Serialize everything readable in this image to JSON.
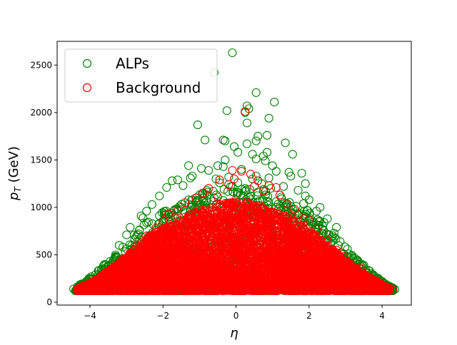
{
  "chart_data": {
    "type": "scatter",
    "title": "",
    "xlabel": "η",
    "ylabel_main": "p",
    "ylabel_sub": "T",
    "ylabel_unit": " (GeV)",
    "xlim": [
      -4.9,
      4.8
    ],
    "ylim": [
      -30,
      2750
    ],
    "xticks": [
      -4,
      -2,
      0,
      2,
      4
    ],
    "yticks": [
      0,
      500,
      1000,
      1500,
      2000,
      2500
    ],
    "xtick_labels": [
      "−4",
      "−2",
      "0",
      "2",
      "4"
    ],
    "ytick_labels": [
      "0",
      "500",
      "1000",
      "1500",
      "2000",
      "2500"
    ],
    "grid": false,
    "legend_position": "top-left",
    "marker": "open-circle",
    "series": [
      {
        "name": "ALPs",
        "color": "#008000",
        "points": [
          [
            -0.1,
            2630
          ],
          [
            -0.6,
            2420
          ],
          [
            0.55,
            2210
          ],
          [
            1.05,
            2110
          ],
          [
            0.3,
            2070
          ],
          [
            0.35,
            2040
          ],
          [
            -0.25,
            2020
          ],
          [
            0.25,
            2000
          ],
          [
            0.9,
            1940
          ],
          [
            0.3,
            1890
          ],
          [
            -1.05,
            1870
          ],
          [
            0.6,
            1750
          ],
          [
            0.85,
            1760
          ],
          [
            0.55,
            1700
          ],
          [
            -0.35,
            1710
          ],
          [
            -0.3,
            1700
          ],
          [
            -0.85,
            1710
          ],
          [
            0.3,
            1670
          ],
          [
            1.35,
            1680
          ],
          [
            -0.05,
            1640
          ],
          [
            0.05,
            1580
          ],
          [
            0.85,
            1580
          ],
          [
            0.45,
            1560
          ],
          [
            0.75,
            1540
          ],
          [
            0.55,
            1510
          ],
          [
            1.55,
            1560
          ],
          [
            -0.3,
            1500
          ],
          [
            0.8,
            1490
          ],
          [
            1.0,
            1440
          ],
          [
            -0.5,
            1440
          ],
          [
            -0.35,
            1430
          ],
          [
            -1.3,
            1440
          ],
          [
            -0.95,
            1410
          ],
          [
            -0.75,
            1390
          ],
          [
            0.15,
            1400
          ],
          [
            1.1,
            1380
          ],
          [
            1.45,
            1370
          ],
          [
            1.8,
            1360
          ],
          [
            -1.2,
            1330
          ],
          [
            -1.25,
            1310
          ],
          [
            0.55,
            1330
          ],
          [
            0.9,
            1310
          ],
          [
            1.5,
            1330
          ],
          [
            -1.6,
            1290
          ],
          [
            -1.75,
            1280
          ],
          [
            -0.55,
            1300
          ],
          [
            1.9,
            1250
          ],
          [
            0.7,
            1250
          ],
          [
            -1.45,
            1230
          ],
          [
            -0.1,
            1220
          ],
          [
            0.25,
            1200
          ],
          [
            1.3,
            1220
          ],
          [
            1.7,
            1180
          ],
          [
            -1.9,
            1210
          ],
          [
            -2.1,
            1120
          ],
          [
            -1.0,
            1130
          ],
          [
            1.9,
            1120
          ],
          [
            2.0,
            1080
          ],
          [
            -2.3,
            1030
          ],
          [
            1.85,
            1040
          ],
          [
            2.2,
            960
          ],
          [
            -2.45,
            960
          ],
          [
            -2.6,
            910
          ],
          [
            2.5,
            880
          ],
          [
            -2.55,
            890
          ],
          [
            2.3,
            1000
          ],
          [
            -2.9,
            790
          ],
          [
            2.75,
            790
          ],
          [
            -2.65,
            760
          ],
          [
            -3.0,
            710
          ],
          [
            2.65,
            700
          ],
          [
            2.85,
            640
          ],
          [
            -3.2,
            600
          ],
          [
            -3.1,
            580
          ],
          [
            3.05,
            560
          ],
          [
            -2.8,
            540
          ],
          [
            2.9,
            520
          ],
          [
            -3.3,
            500
          ],
          [
            3.05,
            480
          ],
          [
            3.2,
            460
          ],
          [
            -3.45,
            430
          ],
          [
            -3.6,
            400
          ],
          [
            3.5,
            390
          ],
          [
            3.1,
            420
          ],
          [
            -3.5,
            380
          ],
          [
            3.55,
            340
          ],
          [
            -3.7,
            330
          ],
          [
            3.7,
            300
          ],
          [
            -3.85,
            290
          ],
          [
            3.8,
            270
          ],
          [
            -4.0,
            250
          ],
          [
            3.9,
            240
          ],
          [
            -4.1,
            220
          ],
          [
            4.0,
            210
          ],
          [
            -4.2,
            190
          ],
          [
            4.1,
            180
          ],
          [
            -4.3,
            170
          ],
          [
            4.2,
            160
          ],
          [
            -4.45,
            140
          ],
          [
            4.35,
            135
          ],
          [
            -4.35,
            150
          ],
          [
            4.3,
            150
          ],
          [
            -1.5,
            1000
          ],
          [
            -1.1,
            1050
          ],
          [
            -0.6,
            1100
          ],
          [
            0.0,
            1080
          ],
          [
            0.4,
            1120
          ],
          [
            1.1,
            1060
          ],
          [
            1.5,
            1010
          ],
          [
            -2.0,
            850
          ],
          [
            2.1,
            820
          ],
          [
            -1.8,
            900
          ],
          [
            1.7,
            920
          ],
          [
            -0.8,
            1180
          ],
          [
            0.6,
            1160
          ],
          [
            0.05,
            1260
          ],
          [
            -0.2,
            1320
          ],
          [
            0.45,
            1300
          ],
          [
            -2.4,
            680
          ],
          [
            2.45,
            660
          ],
          [
            -2.2,
            760
          ],
          [
            2.2,
            740
          ],
          [
            -3.7,
            230
          ],
          [
            3.6,
            230
          ],
          [
            -1.3,
            1080
          ],
          [
            1.25,
            1090
          ],
          [
            -0.45,
            1260
          ],
          [
            0.95,
            1200
          ],
          [
            -4.0,
            180
          ],
          [
            3.95,
            170
          ]
        ]
      },
      {
        "name": "Background",
        "color": "#ff0000",
        "points": [
          [
            0.25,
            2010
          ],
          [
            -0.1,
            1390
          ],
          [
            0.15,
            1380
          ],
          [
            0.4,
            1350
          ],
          [
            -0.45,
            1290
          ],
          [
            0.9,
            1230
          ],
          [
            1.1,
            1210
          ],
          [
            -0.2,
            1240
          ],
          [
            -0.75,
            1200
          ],
          [
            0.5,
            1220
          ],
          [
            1.2,
            1130
          ],
          [
            -1.1,
            1100
          ],
          [
            -0.5,
            1110
          ],
          [
            0.3,
            1060
          ],
          [
            -1.4,
            1050
          ],
          [
            1.4,
            1040
          ],
          [
            1.6,
            980
          ],
          [
            -1.6,
            960
          ],
          [
            1.7,
            920
          ],
          [
            -1.85,
            930
          ],
          [
            -2.0,
            860
          ],
          [
            2.0,
            870
          ],
          [
            1.85,
            880
          ],
          [
            -2.2,
            780
          ],
          [
            2.2,
            770
          ],
          [
            -2.45,
            700
          ],
          [
            2.5,
            650
          ],
          [
            -2.7,
            600
          ],
          [
            2.75,
            550
          ],
          [
            -2.9,
            520
          ],
          [
            2.95,
            480
          ],
          [
            -3.1,
            420
          ],
          [
            3.1,
            400
          ],
          [
            3.4,
            360
          ],
          [
            -3.35,
            350
          ],
          [
            3.3,
            330
          ],
          [
            -3.6,
            300
          ],
          [
            3.6,
            270
          ],
          [
            -3.8,
            240
          ],
          [
            3.85,
            220
          ],
          [
            -4.0,
            200
          ],
          [
            4.0,
            180
          ],
          [
            -4.2,
            170
          ],
          [
            4.2,
            150
          ],
          [
            -4.35,
            140
          ],
          [
            4.3,
            130
          ],
          [
            -0.9,
            1150
          ],
          [
            0.75,
            1170
          ],
          [
            -0.05,
            1300
          ],
          [
            0.6,
            1280
          ]
        ]
      }
    ],
    "dense_regions": [
      {
        "series": "ALPs",
        "color": "#008000",
        "count": 1800,
        "seed": 11,
        "eta_range": [
          -4.4,
          4.3
        ],
        "pt_min": 120,
        "envelope": [
          [
            -4.4,
            150
          ],
          [
            -4.0,
            260
          ],
          [
            -3.5,
            430
          ],
          [
            -3.0,
            620
          ],
          [
            -2.5,
            860
          ],
          [
            -2.0,
            960
          ],
          [
            -1.5,
            1040
          ],
          [
            -1.0,
            1140
          ],
          [
            -0.5,
            1200
          ],
          [
            0.0,
            1230
          ],
          [
            0.5,
            1220
          ],
          [
            1.0,
            1160
          ],
          [
            1.5,
            1060
          ],
          [
            2.0,
            960
          ],
          [
            2.5,
            820
          ],
          [
            3.0,
            580
          ],
          [
            3.5,
            380
          ],
          [
            4.0,
            220
          ],
          [
            4.3,
            150
          ]
        ]
      },
      {
        "series": "Background",
        "color": "#ff0000",
        "count": 6500,
        "seed": 29,
        "eta_range": [
          -4.35,
          4.2
        ],
        "pt_min": 120,
        "envelope": [
          [
            -4.35,
            140
          ],
          [
            -4.0,
            200
          ],
          [
            -3.5,
            330
          ],
          [
            -3.0,
            480
          ],
          [
            -2.5,
            660
          ],
          [
            -2.0,
            800
          ],
          [
            -1.5,
            900
          ],
          [
            -1.0,
            980
          ],
          [
            -0.5,
            1040
          ],
          [
            0.0,
            1060
          ],
          [
            0.5,
            1040
          ],
          [
            1.0,
            980
          ],
          [
            1.5,
            880
          ],
          [
            2.0,
            760
          ],
          [
            2.5,
            600
          ],
          [
            3.0,
            440
          ],
          [
            3.5,
            300
          ],
          [
            4.0,
            190
          ],
          [
            4.2,
            140
          ]
        ]
      }
    ]
  }
}
